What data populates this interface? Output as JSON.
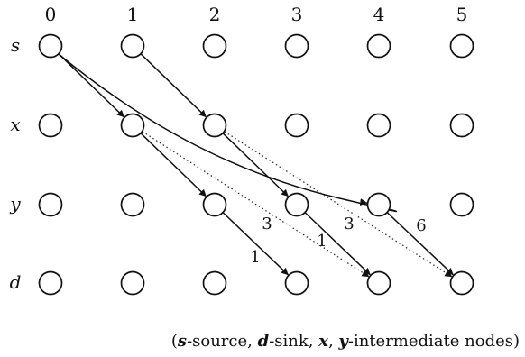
{
  "columns": [
    "0",
    "1",
    "2",
    "3",
    "4",
    "5"
  ],
  "rows": [
    "s",
    "x",
    "y",
    "d"
  ],
  "edges": [
    {
      "from": {
        "row": 0,
        "col": 0
      },
      "to": {
        "row": 1,
        "col": 1
      },
      "style": "solid",
      "label": ""
    },
    {
      "from": {
        "row": 0,
        "col": 0
      },
      "to": {
        "row": 2,
        "col": 4
      },
      "style": "solid",
      "curved": true,
      "label": ""
    },
    {
      "from": {
        "row": 0,
        "col": 1
      },
      "to": {
        "row": 1,
        "col": 2
      },
      "style": "solid",
      "label": ""
    },
    {
      "from": {
        "row": 1,
        "col": 1
      },
      "to": {
        "row": 2,
        "col": 2
      },
      "style": "solid",
      "label": ""
    },
    {
      "from": {
        "row": 1,
        "col": 1
      },
      "to": {
        "row": 3,
        "col": 4
      },
      "style": "dotted",
      "label": "3"
    },
    {
      "from": {
        "row": 1,
        "col": 2
      },
      "to": {
        "row": 2,
        "col": 3
      },
      "style": "solid",
      "label": ""
    },
    {
      "from": {
        "row": 1,
        "col": 2
      },
      "to": {
        "row": 3,
        "col": 5
      },
      "style": "dotted",
      "label": "3"
    },
    {
      "from": {
        "row": 2,
        "col": 2
      },
      "to": {
        "row": 3,
        "col": 3
      },
      "style": "solid",
      "label": "1"
    },
    {
      "from": {
        "row": 2,
        "col": 3
      },
      "to": {
        "row": 3,
        "col": 4
      },
      "style": "solid",
      "label": "1"
    },
    {
      "from": {
        "row": 2,
        "col": 4
      },
      "to": {
        "row": 3,
        "col": 5
      },
      "style": "solid",
      "label": "6"
    }
  ],
  "caption": {
    "open": "(",
    "s": "s",
    "source": "-source, ",
    "d": "d",
    "sink": "-sink, ",
    "x": "x",
    "comma": ", ",
    "y": "y",
    "intermediate": "-intermediate nodes)"
  }
}
